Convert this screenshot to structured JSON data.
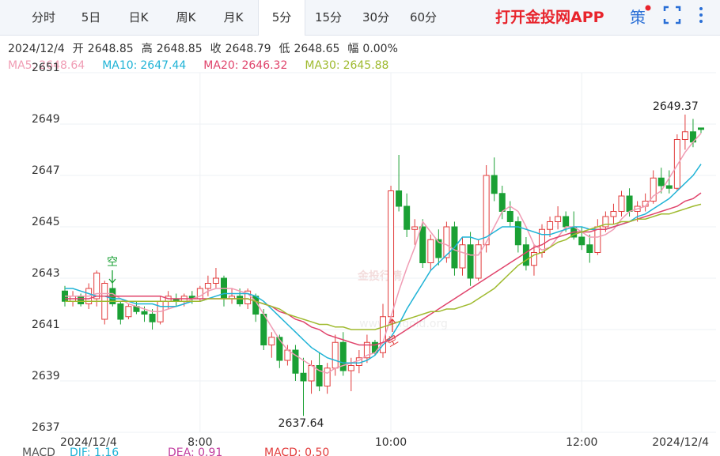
{
  "header": {
    "tabs": [
      "分时",
      "5日",
      "日K",
      "周K",
      "月K",
      "5分",
      "15分",
      "30分",
      "60分"
    ],
    "active_tab": 5,
    "app_link": "打开金投网APP",
    "strategy": "策"
  },
  "info": {
    "date": "2024/12/4",
    "items": [
      {
        "label": "开",
        "value": "2648.85"
      },
      {
        "label": "高",
        "value": "2648.85"
      },
      {
        "label": "收",
        "value": "2648.79"
      },
      {
        "label": "低",
        "value": "2648.65"
      },
      {
        "label": "幅",
        "value": "0.00%"
      }
    ]
  },
  "indicator": [
    "MACD",
    "DIF: 1.16",
    "DEA: 0.91",
    "MACD: 0.50"
  ],
  "watermark": [
    "金投行情",
    "www.cngold.org"
  ],
  "chart_data": {
    "type": "candlestick",
    "up_color": "#e23c3c",
    "down_color": "#1aa034",
    "grid": true,
    "categories": [
      "2024/12/4",
      null,
      null,
      null,
      null,
      null,
      null,
      null,
      null,
      null,
      null,
      null,
      null,
      null,
      null,
      null,
      null,
      "8:00",
      null,
      null,
      null,
      null,
      null,
      null,
      null,
      null,
      null,
      null,
      null,
      null,
      null,
      null,
      null,
      null,
      null,
      null,
      null,
      null,
      null,
      null,
      null,
      "10:00",
      null,
      null,
      null,
      null,
      null,
      null,
      null,
      null,
      null,
      null,
      null,
      null,
      null,
      null,
      null,
      null,
      null,
      null,
      null,
      null,
      null,
      null,
      null,
      "12:00",
      null,
      null,
      null,
      null,
      null,
      null,
      null,
      null,
      null,
      null,
      null,
      null,
      null,
      null,
      "2024/12/4"
    ],
    "open": [
      2642.5,
      2642.1,
      2642.3,
      2642.0,
      2642.2,
      2641.4,
      2642.6,
      2642.0,
      2641.5,
      2641.9,
      2641.7,
      2641.6,
      2641.3,
      2642.1,
      2642.2,
      2642.1,
      2642.3,
      2642.2,
      2642.6,
      2642.8,
      2643.0,
      2642.2,
      2642.3,
      2642.0,
      2642.3,
      2641.6,
      2640.4,
      2640.7,
      2639.8,
      2640.2,
      2639.3,
      2639.0,
      2639.6,
      2638.8,
      2639.5,
      2640.5,
      2639.4,
      2639.6,
      2639.9,
      2640.5,
      2640.1,
      2641.5,
      2646.4,
      2645.8,
      2644.9,
      2645.0,
      2643.6,
      2644.5,
      2643.8,
      2645.0,
      2643.4,
      2644.3,
      2643.0,
      2644.3,
      2647.0,
      2646.3,
      2645.6,
      2645.2,
      2644.3,
      2643.5,
      2644.0,
      2644.9,
      2645.2,
      2645.4,
      2645.0,
      2644.6,
      2644.3,
      2644.0,
      2645.0,
      2645.4,
      2645.6,
      2646.2,
      2645.6,
      2645.8,
      2646.0,
      2646.9,
      2646.6,
      2646.5,
      2648.4,
      2648.7,
      2648.85
    ],
    "high": [
      2642.7,
      2642.5,
      2642.4,
      2642.8,
      2643.3,
      2642.9,
      2642.8,
      2642.1,
      2642.0,
      2642.1,
      2641.9,
      2641.8,
      2642.3,
      2642.5,
      2642.4,
      2642.4,
      2642.5,
      2642.7,
      2643.1,
      2643.4,
      2643.1,
      2642.6,
      2642.6,
      2642.6,
      2642.4,
      2641.8,
      2640.9,
      2640.8,
      2640.4,
      2640.4,
      2639.9,
      2639.8,
      2640.1,
      2639.7,
      2640.8,
      2640.9,
      2639.9,
      2640.2,
      2640.8,
      2640.6,
      2642.0,
      2646.6,
      2647.8,
      2646.3,
      2645.3,
      2645.3,
      2644.7,
      2644.9,
      2645.2,
      2645.2,
      2644.6,
      2644.8,
      2644.5,
      2647.4,
      2647.7,
      2646.6,
      2646.0,
      2645.4,
      2644.6,
      2644.3,
      2645.1,
      2645.4,
      2645.8,
      2645.6,
      2645.6,
      2645.0,
      2644.7,
      2645.3,
      2645.6,
      2645.9,
      2646.4,
      2646.5,
      2646.0,
      2646.3,
      2647.2,
      2647.3,
      2647.2,
      2648.6,
      2649.37,
      2649.2,
      2648.85
    ],
    "low": [
      2641.9,
      2641.9,
      2641.9,
      2641.8,
      2641.9,
      2641.2,
      2641.9,
      2641.2,
      2641.4,
      2641.6,
      2641.3,
      2641.0,
      2641.2,
      2641.8,
      2641.9,
      2641.9,
      2642.0,
      2642.1,
      2642.3,
      2642.6,
      2641.9,
      2642.0,
      2641.9,
      2641.8,
      2641.3,
      2640.2,
      2639.9,
      2639.5,
      2639.6,
      2639.0,
      2637.64,
      2638.5,
      2638.6,
      2638.5,
      2639.2,
      2639.2,
      2638.6,
      2639.3,
      2639.7,
      2640.0,
      2639.9,
      2641.2,
      2645.6,
      2644.6,
      2644.3,
      2643.4,
      2643.3,
      2643.5,
      2643.6,
      2643.1,
      2643.1,
      2642.7,
      2642.9,
      2644.0,
      2646.0,
      2645.3,
      2645.0,
      2644.0,
      2643.3,
      2643.1,
      2643.8,
      2644.6,
      2644.9,
      2644.8,
      2644.5,
      2644.1,
      2643.6,
      2643.9,
      2644.8,
      2645.1,
      2645.4,
      2645.4,
      2645.2,
      2645.6,
      2645.9,
      2646.3,
      2646.3,
      2646.4,
      2648.0,
      2648.1,
      2648.65
    ],
    "close": [
      2642.1,
      2642.3,
      2642.0,
      2642.6,
      2643.2,
      2642.8,
      2642.0,
      2641.4,
      2641.9,
      2641.7,
      2641.6,
      2641.3,
      2642.1,
      2642.3,
      2642.1,
      2642.3,
      2642.2,
      2642.6,
      2642.8,
      2643.0,
      2642.2,
      2642.3,
      2642.0,
      2642.5,
      2641.6,
      2640.4,
      2640.7,
      2639.8,
      2640.2,
      2639.3,
      2639.0,
      2639.6,
      2638.8,
      2639.5,
      2640.5,
      2639.4,
      2639.6,
      2639.9,
      2640.5,
      2640.1,
      2641.5,
      2646.4,
      2645.8,
      2644.9,
      2645.0,
      2643.6,
      2644.5,
      2643.8,
      2645.0,
      2643.4,
      2644.3,
      2643.0,
      2644.3,
      2647.0,
      2646.3,
      2645.6,
      2645.2,
      2644.3,
      2643.5,
      2644.0,
      2644.9,
      2645.2,
      2645.4,
      2645.0,
      2644.6,
      2644.3,
      2644.0,
      2645.0,
      2645.4,
      2645.6,
      2646.2,
      2645.6,
      2645.8,
      2646.0,
      2646.9,
      2646.6,
      2646.5,
      2648.4,
      2648.7,
      2648.3,
      2648.79
    ],
    "series": [
      {
        "name": "MA5:",
        "color": "#f09cb4",
        "values": [
          2642.3,
          2642.3,
          2642.3,
          2642.3,
          2642.4,
          2642.4,
          2642.4,
          2642.2,
          2642.0,
          2641.9,
          2641.8,
          2641.7,
          2641.7,
          2641.8,
          2641.9,
          2642.0,
          2642.2,
          2642.3,
          2642.5,
          2642.6,
          2642.6,
          2642.6,
          2642.5,
          2642.4,
          2642.1,
          2641.6,
          2641.1,
          2640.6,
          2640.2,
          2640.0,
          2639.8,
          2639.6,
          2639.4,
          2639.3,
          2639.5,
          2639.6,
          2639.7,
          2639.8,
          2640.0,
          2640.1,
          2640.5,
          2641.5,
          2642.5,
          2643.4,
          2644.2,
          2645.2,
          2644.8,
          2644.4,
          2644.3,
          2644.1,
          2644.0,
          2643.9,
          2643.9,
          2644.4,
          2645.0,
          2645.6,
          2645.8,
          2645.6,
          2645.0,
          2644.3,
          2644.1,
          2644.2,
          2644.6,
          2645.0,
          2645.0,
          2644.8,
          2644.6,
          2644.6,
          2644.7,
          2644.9,
          2645.3,
          2645.6,
          2645.7,
          2645.8,
          2646.2,
          2646.4,
          2646.9,
          2647.4,
          2647.9,
          2648.3,
          2648.64
        ]
      },
      {
        "name": "MA10:",
        "color": "#1fb3d6",
        "values": [
          2642.6,
          2642.6,
          2642.5,
          2642.4,
          2642.3,
          2642.3,
          2642.2,
          2642.2,
          2642.1,
          2642.0,
          2642.0,
          2642.0,
          2641.9,
          2641.9,
          2641.9,
          2642.0,
          2642.1,
          2642.1,
          2642.2,
          2642.3,
          2642.4,
          2642.4,
          2642.4,
          2642.4,
          2642.3,
          2642.1,
          2641.8,
          2641.5,
          2641.2,
          2640.9,
          2640.6,
          2640.3,
          2640.1,
          2639.9,
          2639.8,
          2639.7,
          2639.7,
          2639.7,
          2639.8,
          2640.0,
          2640.4,
          2640.7,
          2641.2,
          2641.8,
          2642.3,
          2642.8,
          2643.3,
          2643.6,
          2643.9,
          2644.2,
          2644.6,
          2644.6,
          2644.5,
          2644.6,
          2644.8,
          2645.0,
          2645.0,
          2645.0,
          2644.9,
          2644.8,
          2644.7,
          2644.7,
          2644.8,
          2644.9,
          2645.0,
          2645.0,
          2644.9,
          2644.9,
          2644.9,
          2645.0,
          2645.1,
          2645.2,
          2645.4,
          2645.5,
          2645.7,
          2645.9,
          2646.1,
          2646.4,
          2646.7,
          2647.0,
          2647.44
        ]
      },
      {
        "name": "MA20:",
        "color": "#e0436b",
        "values": [
          2642.2,
          2642.2,
          2642.2,
          2642.2,
          2642.3,
          2642.3,
          2642.3,
          2642.3,
          2642.3,
          2642.3,
          2642.3,
          2642.3,
          2642.3,
          2642.2,
          2642.2,
          2642.2,
          2642.2,
          2642.2,
          2642.2,
          2642.2,
          2642.2,
          2642.2,
          2642.2,
          2642.2,
          2642.1,
          2642.0,
          2641.9,
          2641.7,
          2641.6,
          2641.4,
          2641.3,
          2641.1,
          2641.0,
          2640.8,
          2640.7,
          2640.6,
          2640.5,
          2640.4,
          2640.4,
          2640.4,
          2640.5,
          2640.6,
          2640.8,
          2641.0,
          2641.2,
          2641.4,
          2641.6,
          2641.8,
          2642.0,
          2642.2,
          2642.4,
          2642.6,
          2642.8,
          2643.0,
          2643.2,
          2643.4,
          2643.6,
          2643.8,
          2644.0,
          2644.2,
          2644.3,
          2644.5,
          2644.6,
          2644.7,
          2644.8,
          2644.8,
          2644.8,
          2644.9,
          2644.9,
          2645.0,
          2645.1,
          2645.2,
          2645.3,
          2645.4,
          2645.5,
          2645.6,
          2645.7,
          2645.8,
          2646.0,
          2646.1,
          2646.32
        ]
      },
      {
        "name": "MA30:",
        "color": "#9fba2e",
        "values": [
          2642.1,
          2642.1,
          2642.1,
          2642.1,
          2642.1,
          2642.1,
          2642.1,
          2642.1,
          2642.1,
          2642.1,
          2642.1,
          2642.1,
          2642.1,
          2642.1,
          2642.1,
          2642.1,
          2642.1,
          2642.1,
          2642.2,
          2642.2,
          2642.2,
          2642.2,
          2642.2,
          2642.2,
          2642.1,
          2642.0,
          2641.9,
          2641.8,
          2641.6,
          2641.5,
          2641.4,
          2641.3,
          2641.2,
          2641.2,
          2641.1,
          2641.1,
          2641.0,
          2641.0,
          2641.0,
          2641.0,
          2641.1,
          2641.2,
          2641.3,
          2641.4,
          2641.5,
          2641.6,
          2641.7,
          2641.7,
          2641.8,
          2641.8,
          2641.9,
          2642.0,
          2642.2,
          2642.4,
          2642.6,
          2642.9,
          2643.2,
          2643.5,
          2643.7,
          2643.9,
          2644.0,
          2644.2,
          2644.4,
          2644.5,
          2644.7,
          2644.8,
          2644.9,
          2645.0,
          2645.1,
          2645.1,
          2645.2,
          2645.2,
          2645.3,
          2645.3,
          2645.4,
          2645.5,
          2645.5,
          2645.6,
          2645.7,
          2645.8,
          2645.88
        ]
      }
    ],
    "signals": [
      {
        "text": "空",
        "color": "#1aa034"
      },
      {
        "text": "空",
        "color": "#e23c3c"
      }
    ],
    "ylim": [
      2637,
      2651
    ],
    "yticks": [
      2637,
      2639,
      2641,
      2643,
      2645,
      2647,
      2649,
      2651
    ]
  }
}
